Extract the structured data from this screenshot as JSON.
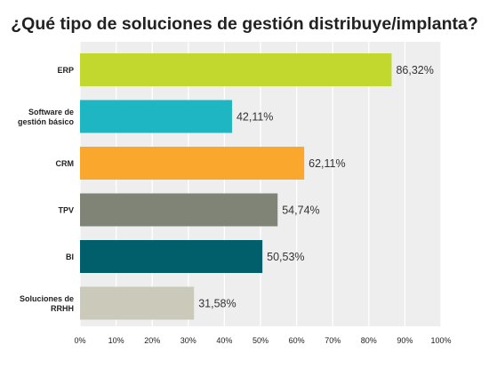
{
  "chart_data": {
    "type": "bar",
    "orientation": "horizontal",
    "title": "¿Qué tipo de soluciones de gestión distribuye/implanta?",
    "categories": [
      [
        "ERP"
      ],
      [
        "Software de",
        "gestión básico"
      ],
      [
        "CRM"
      ],
      [
        "TPV"
      ],
      [
        "BI"
      ],
      [
        "Soluciones de",
        "RRHH"
      ]
    ],
    "values": [
      86.32,
      42.11,
      62.11,
      54.74,
      50.53,
      31.58
    ],
    "value_labels": [
      "86,32%",
      "42,11%",
      "62,11%",
      "54,74%",
      "50,53%",
      "31,58%"
    ],
    "colors": [
      "#c3d82e",
      "#1fb6c3",
      "#f9a72d",
      "#808476",
      "#005f6b",
      "#cbc9ba"
    ],
    "xlim": [
      0,
      100
    ],
    "x_ticks": [
      "0%",
      "10%",
      "20%",
      "30%",
      "40%",
      "50%",
      "60%",
      "70%",
      "80%",
      "90%",
      "100%"
    ],
    "grid": true,
    "background": "#eeeeee",
    "grid_color": "#ffffff"
  }
}
